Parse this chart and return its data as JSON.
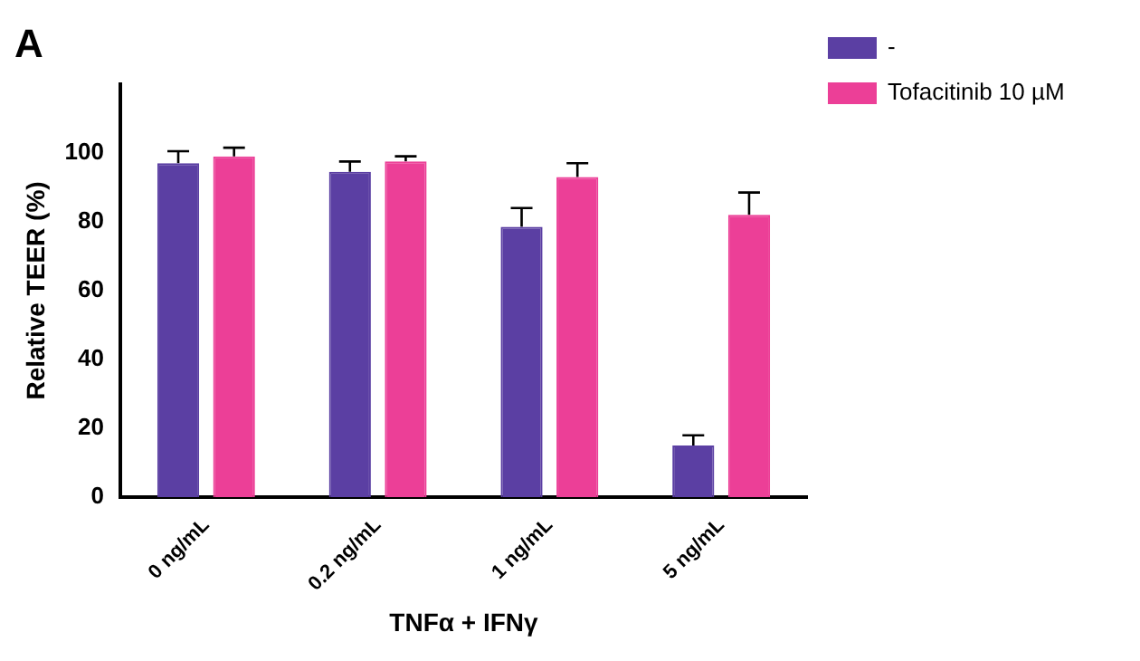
{
  "chart_data": {
    "type": "bar",
    "title": "A",
    "xlabel": "TNFα + IFNγ",
    "ylabel": "Relative TEER (%)",
    "categories": [
      "0 ng/mL",
      "0.2 ng/mL",
      "1 ng/mL",
      "5 ng/mL"
    ],
    "series": [
      {
        "name": "-",
        "color": "#5b3fa3",
        "values": [
          97,
          94.5,
          78.5,
          15
        ],
        "errors": [
          [
            97,
            100.5
          ],
          [
            94.5,
            97.5
          ],
          [
            78.5,
            84
          ],
          [
            15,
            18
          ]
        ]
      },
      {
        "name": "Tofacitinib 10 µM",
        "color": "#ec3f97",
        "values": [
          99,
          97.5,
          93,
          82
        ],
        "errors": [
          [
            99,
            101.5
          ],
          [
            97.5,
            99
          ],
          [
            93,
            97
          ],
          [
            82,
            88.5
          ]
        ]
      }
    ],
    "ylim": [
      0,
      120
    ],
    "yticks": [
      0,
      20,
      40,
      60,
      80,
      100
    ],
    "grid": false,
    "legend": "top right"
  }
}
